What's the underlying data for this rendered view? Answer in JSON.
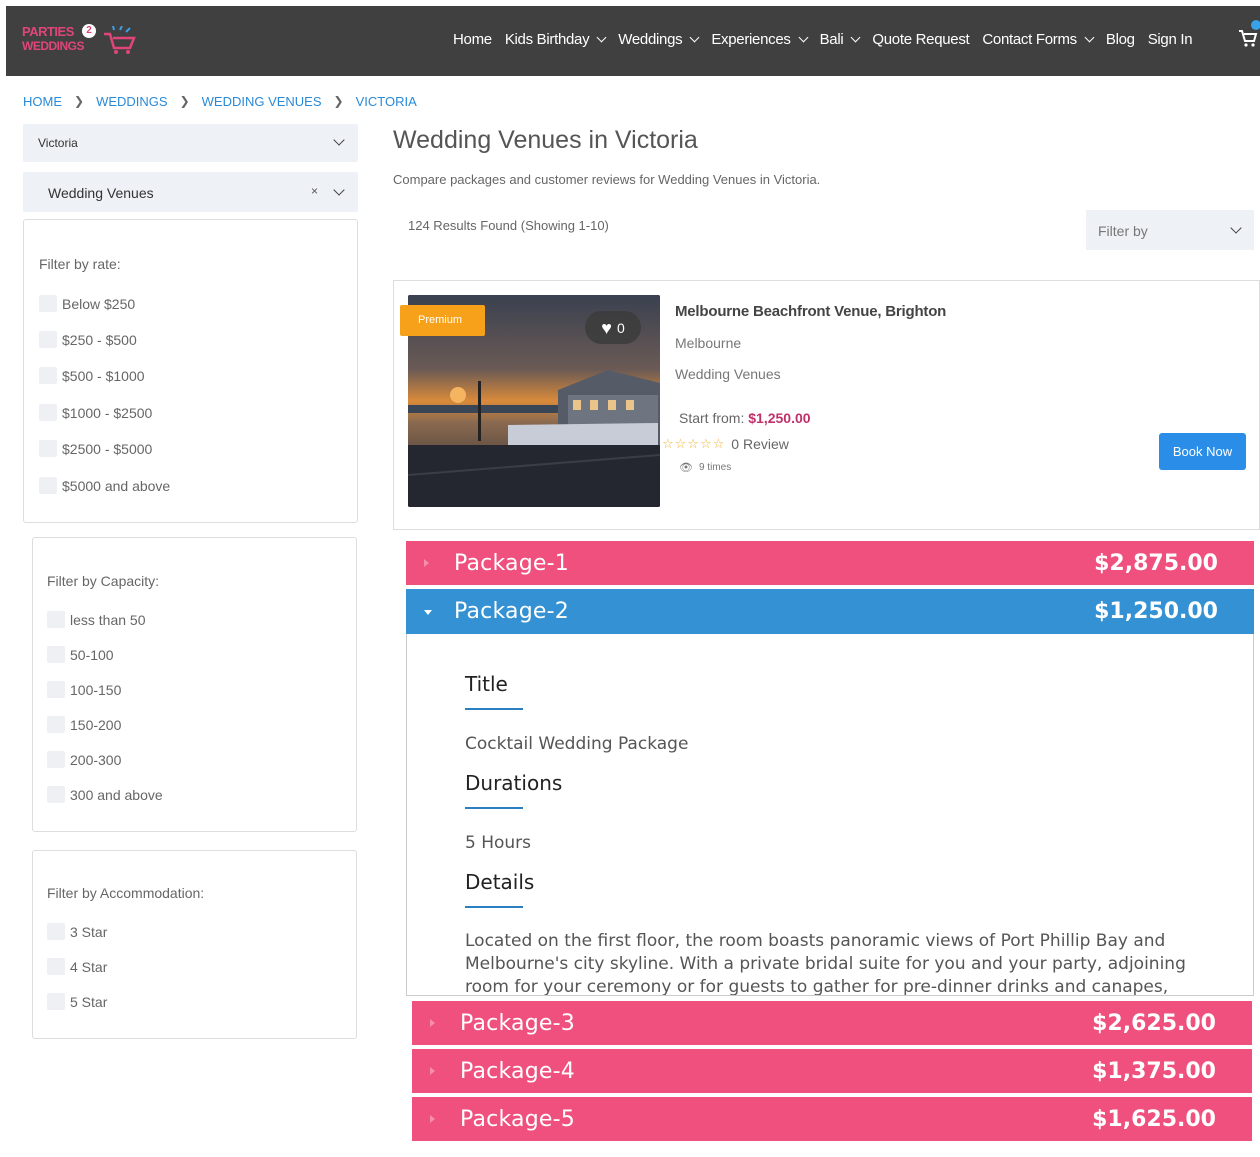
{
  "header": {
    "logo_line1": "PARTIES",
    "logo_badge": "2",
    "logo_line2": "WEDDINGS",
    "nav": [
      {
        "label": "Home",
        "has_dropdown": false
      },
      {
        "label": "Kids Birthday",
        "has_dropdown": true
      },
      {
        "label": "Weddings",
        "has_dropdown": true
      },
      {
        "label": "Experiences",
        "has_dropdown": true
      },
      {
        "label": "Bali",
        "has_dropdown": true
      },
      {
        "label": "Quote Request",
        "has_dropdown": false
      },
      {
        "label": "Contact Forms",
        "has_dropdown": true
      },
      {
        "label": "Blog",
        "has_dropdown": false
      },
      {
        "label": "Sign In",
        "has_dropdown": false
      }
    ],
    "cart_icon": "shopping-cart-icon"
  },
  "breadcrumb": [
    "HOME",
    "WEDDINGS",
    "WEDDING VENUES",
    "VICTORIA"
  ],
  "sidebar": {
    "location_select": "Victoria",
    "category_select": "Wedding Venues",
    "clear_symbol": "×",
    "rate_filter": {
      "title": "Filter by rate:",
      "options": [
        "Below $250",
        "$250 - $500",
        "$500 - $1000",
        "$1000 - $2500",
        "$2500 - $5000",
        "$5000 and above"
      ]
    },
    "capacity_filter": {
      "title": "Filter by Capacity:",
      "options": [
        "less than 50",
        "50-100",
        "100-150",
        "150-200",
        "200-300",
        "300 and above"
      ]
    },
    "accommodation_filter": {
      "title": "Filter by Accommodation:",
      "options": [
        "3 Star",
        "4 Star",
        "5 Star"
      ]
    }
  },
  "main": {
    "title": "Wedding Venues in Victoria",
    "subtitle": "Compare packages and customer reviews for Wedding Venues in Victoria.",
    "results": "124 Results Found (Showing 1-10)",
    "filter_by": "Filter by"
  },
  "listing": {
    "badge": "Premium",
    "wishlist_count": "0",
    "name": "Melbourne Beachfront Venue, Brighton",
    "city": "Melbourne",
    "category": "Wedding Venues",
    "start_label": "Start from:",
    "start_price": "$1,250.00",
    "stars": "☆☆☆☆☆",
    "reviews": "0 Review",
    "views": "9 times",
    "book_label": "Book Now",
    "colors": {
      "book": "#2a8ee8",
      "price": "#c0306a",
      "premium": "#f7a11a"
    }
  },
  "packages": [
    {
      "name": "Package-1",
      "price": "$2,875.00",
      "open": false
    },
    {
      "name": "Package-2",
      "price": "$1,250.00",
      "open": true
    },
    {
      "name": "Package-3",
      "price": "$2,625.00",
      "open": false
    },
    {
      "name": "Package-4",
      "price": "$1,375.00",
      "open": false
    },
    {
      "name": "Package-5",
      "price": "$1,625.00",
      "open": false
    }
  ],
  "package_detail": {
    "title_label": "Title",
    "title_value": "Cocktail Wedding Package",
    "durations_label": "Durations",
    "durations_value": "5 Hours",
    "details_label": "Details",
    "details_value": "Located on the first floor, the room boasts panoramic views of Port Phillip Bay and Melbourne's city skyline. With a private bridal suite for you and your party, adjoining room for your ceremony or for guests to gather for pre-dinner drinks and canapes,"
  },
  "colors": {
    "package_closed": "#f0507e",
    "package_open": "#3492d4",
    "link": "#2a8ad8",
    "header_bg": "#404040"
  }
}
